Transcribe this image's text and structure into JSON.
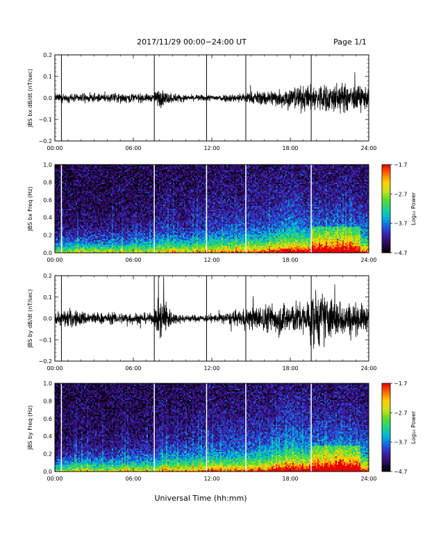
{
  "header": {
    "title": "2017/11/29  00:00−24:00 UT",
    "page": "Page 1/1"
  },
  "colors": {
    "trace": "#000000",
    "background": "#ffffff",
    "marker": "#000000",
    "spectrogram_marker": "#ffffff",
    "colorbar_stops": [
      "#000000",
      "#2a0a55",
      "#3b1fa8",
      "#1d5fe0",
      "#00b4d8",
      "#1fd38a",
      "#5cdb2c",
      "#c8e01a",
      "#ffd000",
      "#ff6a00",
      "#e60000"
    ]
  },
  "chart_data": [
    {
      "type": "line",
      "ylabel": "JBS bx dB/dt (nT/sec)",
      "xlim": [
        0,
        24
      ],
      "ylim": [
        -0.2,
        0.2
      ],
      "yticks": [
        "0.2",
        "0.1",
        "0.0",
        "−0.1",
        "−0.2"
      ],
      "xticks": [
        "00:00",
        "06:00",
        "12:00",
        "18:00",
        "24:00"
      ],
      "markers_hours": [
        0.5,
        7.6,
        11.6,
        14.6,
        19.6
      ],
      "envelope": {
        "hours": [
          0,
          2,
          4,
          5.5,
          7.5,
          8.0,
          8.5,
          10,
          12,
          14,
          15,
          16,
          17,
          18,
          19,
          19.6,
          20.5,
          21.5,
          22.5,
          23.2,
          24
        ],
        "amplitude": [
          0.015,
          0.016,
          0.017,
          0.02,
          0.015,
          0.04,
          0.025,
          0.012,
          0.013,
          0.018,
          0.025,
          0.03,
          0.035,
          0.045,
          0.05,
          0.05,
          0.06,
          0.06,
          0.055,
          0.05,
          0.045
        ]
      }
    },
    {
      "type": "heatmap",
      "ylabel": "JBS bx Freq (Hz)",
      "xlim": [
        0,
        24
      ],
      "ylim": [
        0,
        1.0
      ],
      "yticks": [
        "1.0",
        "0.8",
        "0.6",
        "0.4",
        "0.2",
        "0.0"
      ],
      "xticks": [
        "00:00",
        "06:00",
        "12:00",
        "18:00",
        "24:00"
      ],
      "markers_hours": [
        0.5,
        7.6,
        11.6,
        14.6,
        19.6
      ],
      "colorbar": {
        "label": "Log₁₀ Power",
        "ticks": [
          "−1.7",
          "−2.7",
          "−3.7",
          "−4.7"
        ],
        "range": [
          -4.7,
          -1.7
        ]
      }
    },
    {
      "type": "line",
      "ylabel": "JBS by dB/dt (nT/sec)",
      "xlim": [
        0,
        24
      ],
      "ylim": [
        -0.2,
        0.2
      ],
      "yticks": [
        "0.2",
        "0.1",
        "0.0",
        "−0.1",
        "−0.2"
      ],
      "xticks": [
        "00:00",
        "06:00",
        "12:00",
        "18:00",
        "24:00"
      ],
      "markers_hours": [
        0.5,
        7.6,
        11.6,
        14.6,
        19.6
      ],
      "envelope": {
        "hours": [
          0,
          1,
          2,
          4,
          5.5,
          7.5,
          8.0,
          8.3,
          9,
          10,
          12,
          14,
          15,
          16,
          17,
          18,
          19,
          20.0,
          20.5,
          21.5,
          22.5,
          23.2,
          24
        ],
        "amplitude": [
          0.025,
          0.04,
          0.03,
          0.022,
          0.025,
          0.02,
          0.08,
          0.09,
          0.025,
          0.015,
          0.015,
          0.03,
          0.045,
          0.055,
          0.065,
          0.07,
          0.06,
          0.12,
          0.1,
          0.08,
          0.065,
          0.06,
          0.05
        ]
      }
    },
    {
      "type": "heatmap",
      "ylabel": "JBS by Freq (Hz)",
      "xlim": [
        0,
        24
      ],
      "ylim": [
        0,
        1.0
      ],
      "yticks": [
        "1.0",
        "0.8",
        "0.6",
        "0.4",
        "0.2",
        "0.0"
      ],
      "xticks": [
        "00:00",
        "06:00",
        "12:00",
        "18:00",
        "24:00"
      ],
      "markers_hours": [
        0.5,
        7.6,
        11.6,
        14.6,
        19.6
      ],
      "colorbar": {
        "label": "Log₁₀ Power",
        "ticks": [
          "−1.7",
          "−2.7",
          "−3.7",
          "−4.7"
        ],
        "range": [
          -4.7,
          -1.7
        ]
      }
    }
  ],
  "footer": {
    "xlabel": "Universal Time (hh:mm)"
  }
}
